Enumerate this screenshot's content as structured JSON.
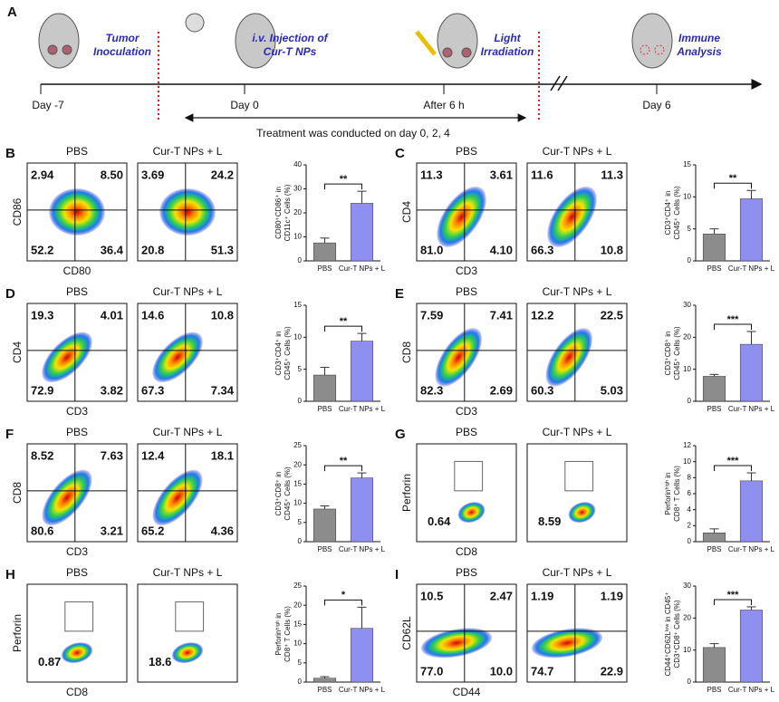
{
  "timeline": {
    "letter": "A",
    "events": [
      "Tumor Inoculation",
      "i.v. Injection of Cur-T NPs",
      "Light Irradiation",
      "Immune Analysis"
    ],
    "days": [
      "Day -7",
      "Day 0",
      "After 6 h",
      "Day 6"
    ],
    "treatment": "Treatment was conducted on day 0, 2, 4"
  },
  "flow_panels": [
    {
      "letter": "B",
      "xlabel": "CD80",
      "ylabel": "CD86",
      "plots": [
        {
          "title": "PBS",
          "quadrants": [
            "2.94",
            "8.50",
            "52.2",
            "36.4"
          ]
        },
        {
          "title": "Cur-T NPs + L",
          "quadrants": [
            "3.69",
            "24.2",
            "20.8",
            "51.3"
          ]
        }
      ]
    },
    {
      "letter": "C",
      "xlabel": "CD3",
      "ylabel": "CD4",
      "plots": [
        {
          "title": "PBS",
          "quadrants": [
            "11.3",
            "3.61",
            "81.0",
            "4.10"
          ]
        },
        {
          "title": "Cur-T NPs + L",
          "quadrants": [
            "11.6",
            "11.3",
            "66.3",
            "10.8"
          ]
        }
      ]
    },
    {
      "letter": "D",
      "xlabel": "CD3",
      "ylabel": "CD4",
      "plots": [
        {
          "title": "PBS",
          "quadrants": [
            "19.3",
            "4.01",
            "72.9",
            "3.82"
          ]
        },
        {
          "title": "Cur-T NPs + L",
          "quadrants": [
            "14.6",
            "10.8",
            "67.3",
            "7.34"
          ]
        }
      ]
    },
    {
      "letter": "E",
      "xlabel": "CD3",
      "ylabel": "CD8",
      "plots": [
        {
          "title": "PBS",
          "quadrants": [
            "7.59",
            "7.41",
            "82.3",
            "2.69"
          ]
        },
        {
          "title": "Cur-T NPs + L",
          "quadrants": [
            "12.2",
            "22.5",
            "60.3",
            "5.03"
          ]
        }
      ]
    },
    {
      "letter": "F",
      "xlabel": "CD3",
      "ylabel": "CD8",
      "plots": [
        {
          "title": "PBS",
          "quadrants": [
            "8.52",
            "7.63",
            "80.6",
            "3.21"
          ]
        },
        {
          "title": "Cur-T NPs + L",
          "quadrants": [
            "12.4",
            "18.1",
            "65.2",
            "4.36"
          ]
        }
      ]
    },
    {
      "letter": "G",
      "xlabel": "CD8",
      "ylabel": "Perforin",
      "plots": [
        {
          "title": "PBS",
          "gate": "0.64"
        },
        {
          "title": "Cur-T NPs + L",
          "gate": "8.59"
        }
      ]
    },
    {
      "letter": "H",
      "xlabel": "CD8",
      "ylabel": "Perforin",
      "plots": [
        {
          "title": "PBS",
          "gate": "0.87"
        },
        {
          "title": "Cur-T NPs + L",
          "gate": "18.6"
        }
      ]
    },
    {
      "letter": "I",
      "xlabel": "CD44",
      "ylabel": "CD62L",
      "plots": [
        {
          "title": "PBS",
          "quadrants": [
            "10.5",
            "2.47",
            "77.0",
            "10.0"
          ]
        },
        {
          "title": "Cur-T NPs + L",
          "quadrants": [
            "1.19",
            "1.19",
            "74.7",
            "22.9"
          ]
        }
      ]
    }
  ],
  "chart_data": [
    {
      "type": "bar",
      "ylabel": [
        "CD80⁺CD86⁺ in",
        "CD11c⁺ Cells (%)"
      ],
      "categories": [
        "PBS",
        "Cur-T NPs + L"
      ],
      "values": [
        7.5,
        24
      ],
      "errors": [
        2,
        5
      ],
      "colors": [
        "#8c8c8c",
        "#8f8ff0"
      ],
      "ylim": [
        0,
        40
      ],
      "yticks": [
        0,
        10,
        20,
        30,
        40
      ],
      "significance": "**"
    },
    {
      "type": "bar",
      "ylabel": [
        "CD3⁺CD4⁺ in",
        "CD45⁺ Cells (%)"
      ],
      "categories": [
        "PBS",
        "Cur-T NPs + L"
      ],
      "values": [
        4.2,
        9.7
      ],
      "errors": [
        0.8,
        1.3
      ],
      "colors": [
        "#8c8c8c",
        "#8f8ff0"
      ],
      "ylim": [
        0,
        15
      ],
      "yticks": [
        0,
        5,
        10,
        15
      ],
      "significance": "**"
    },
    {
      "type": "bar",
      "ylabel": [
        "CD3⁺CD4⁺ in",
        "CD45⁺ Cells (%)"
      ],
      "categories": [
        "PBS",
        "Cur-T NPs + L"
      ],
      "values": [
        4.1,
        9.4
      ],
      "errors": [
        1.2,
        1.2
      ],
      "colors": [
        "#8c8c8c",
        "#8f8ff0"
      ],
      "ylim": [
        0,
        15
      ],
      "yticks": [
        0,
        5,
        10,
        15
      ],
      "significance": "**"
    },
    {
      "type": "bar",
      "ylabel": [
        "CD3⁺CD8⁺ in",
        "CD45⁺ Cells (%)"
      ],
      "categories": [
        "PBS",
        "Cur-T NPs + L"
      ],
      "values": [
        7.8,
        17.8
      ],
      "errors": [
        0.6,
        4
      ],
      "colors": [
        "#8c8c8c",
        "#8f8ff0"
      ],
      "ylim": [
        0,
        30
      ],
      "yticks": [
        0,
        10,
        20,
        30
      ],
      "significance": "***"
    },
    {
      "type": "bar",
      "ylabel": [
        "CD3⁺CD8⁺ in",
        "CD45⁺ Cells (%)"
      ],
      "categories": [
        "PBS",
        "Cur-T NPs + L"
      ],
      "values": [
        8.5,
        16.6
      ],
      "errors": [
        0.8,
        1.3
      ],
      "colors": [
        "#8c8c8c",
        "#8f8ff0"
      ],
      "ylim": [
        0,
        25
      ],
      "yticks": [
        0,
        5,
        10,
        15,
        20,
        25
      ],
      "significance": "**"
    },
    {
      "type": "bar",
      "ylabel": [
        "Perforinʰⁱᵍʰ in",
        "CD8⁺ T Cells (%)"
      ],
      "categories": [
        "PBS",
        "Cur-T NPs + L"
      ],
      "values": [
        1.1,
        7.6
      ],
      "errors": [
        0.5,
        1
      ],
      "colors": [
        "#8c8c8c",
        "#8f8ff0"
      ],
      "ylim": [
        0,
        12
      ],
      "yticks": [
        0,
        2,
        4,
        6,
        8,
        10,
        12
      ],
      "significance": "***"
    },
    {
      "type": "bar",
      "ylabel": [
        "Perforinʰⁱᵍʰ in",
        "CD8⁺ T Cells (%)"
      ],
      "categories": [
        "PBS",
        "Cur-T NPs + L"
      ],
      "values": [
        1,
        14
      ],
      "errors": [
        0.4,
        5.5
      ],
      "colors": [
        "#8c8c8c",
        "#8f8ff0"
      ],
      "ylim": [
        0,
        25
      ],
      "yticks": [
        0,
        5,
        10,
        15,
        20,
        25
      ],
      "significance": "*"
    },
    {
      "type": "bar",
      "ylabel": [
        "CD44⁺CD62Lˡᵒʷ in CD45⁺",
        "CD3⁺CD8⁺ Cells (%)"
      ],
      "categories": [
        "PBS",
        "Cur-T NPs + L"
      ],
      "values": [
        10.8,
        22.5
      ],
      "errors": [
        1.2,
        1
      ],
      "colors": [
        "#8c8c8c",
        "#8f8ff0"
      ],
      "ylim": [
        0,
        30
      ],
      "yticks": [
        0,
        10,
        20,
        30
      ],
      "significance": "***"
    }
  ]
}
